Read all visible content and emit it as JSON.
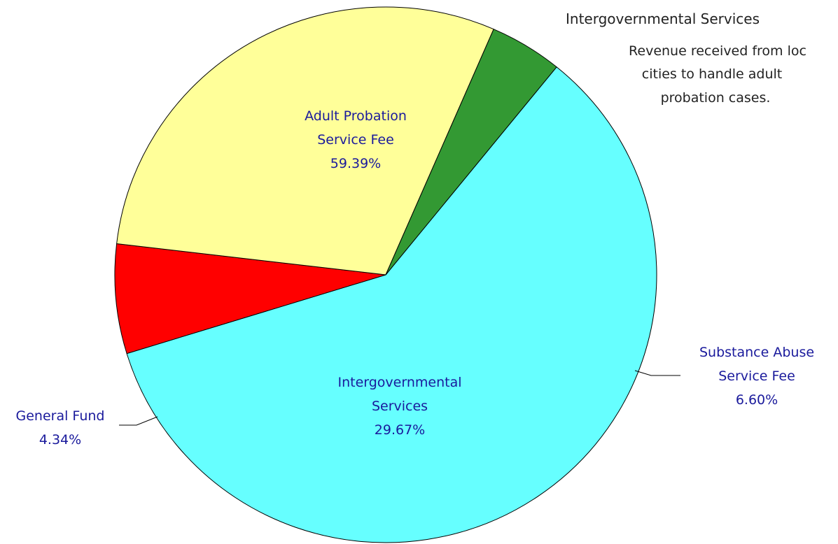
{
  "chart_data": {
    "type": "pie",
    "slices": [
      {
        "label": "Adult Probation Service Fee",
        "label_lines": [
          "Adult Probation",
          "Service Fee"
        ],
        "percent_text": "59.39%",
        "value": 59.39,
        "color": "#66ffff"
      },
      {
        "label": "Substance Abuse Service Fee",
        "label_lines": [
          "Substance Abuse",
          "Service Fee"
        ],
        "percent_text": "6.60%",
        "value": 6.6,
        "color": "#ff0000"
      },
      {
        "label": "Intergovernmental Services",
        "label_lines": [
          "Intergovernmental",
          "Services"
        ],
        "percent_text": "29.67%",
        "value": 29.67,
        "color": "#ffff99"
      },
      {
        "label": "General Fund",
        "label_lines": [
          "General Fund"
        ],
        "percent_text": "4.34%",
        "value": 4.34,
        "color": "#339933"
      }
    ]
  },
  "tooltip": {
    "title": "Intergovernmental Services",
    "body_lines": [
      "Revenue received from loc",
      "cities to handle adult",
      "probation cases."
    ]
  }
}
